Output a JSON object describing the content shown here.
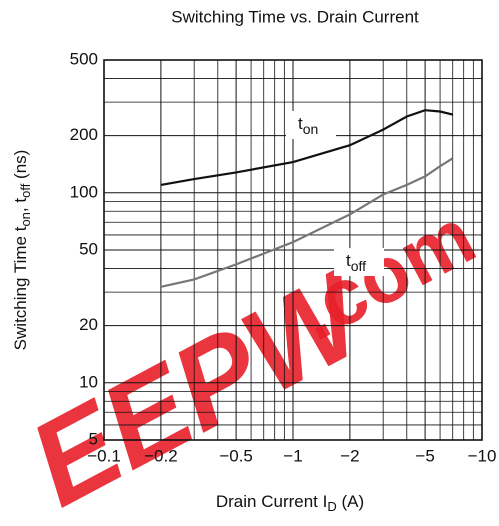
{
  "chart_data": {
    "type": "line",
    "title": "Switching Time vs. Drain Current",
    "xlabel": [
      {
        "text": "Drain Current   I"
      },
      {
        "sub": "D"
      },
      {
        "text": "   (A)"
      }
    ],
    "ylabel": [
      {
        "text": "Switching Time   t"
      },
      {
        "sub": "on"
      },
      {
        "text": ", t"
      },
      {
        "sub": "off"
      },
      {
        "text": "  (ns)"
      }
    ],
    "xscale": "log",
    "yscale": "log",
    "grid": true,
    "xlim": [
      -0.1,
      -10
    ],
    "ylim": [
      5,
      500
    ],
    "xticks": [
      {
        "value": -0.1,
        "label": "−0.1"
      },
      {
        "value": -0.2,
        "label": "−0.2"
      },
      {
        "value": -0.5,
        "label": "−0.5"
      },
      {
        "value": -1,
        "label": "−1"
      },
      {
        "value": -2,
        "label": "−2"
      },
      {
        "value": -5,
        "label": "−5"
      },
      {
        "value": -10,
        "label": "−10"
      }
    ],
    "yticks": [
      5,
      10,
      20,
      50,
      100,
      200,
      500
    ],
    "xminorticks": [
      -0.3,
      -0.4,
      -0.6,
      -0.7,
      -0.8,
      -0.9,
      -3,
      -4,
      -6,
      -7,
      -8,
      -9
    ],
    "yminorticks": [
      6,
      7,
      8,
      9,
      30,
      40,
      60,
      70,
      80,
      90,
      300,
      400
    ],
    "x": [
      -0.2,
      -0.3,
      -0.5,
      -1,
      -2,
      -3,
      -4,
      -5,
      -6,
      -7
    ],
    "series": [
      {
        "name": "t",
        "name_sub": "on",
        "color": "#111111",
        "values": [
          110,
          118,
          128,
          145,
          178,
          215,
          252,
          272,
          268,
          258
        ]
      },
      {
        "name": "t",
        "name_sub": "off",
        "color": "#777777",
        "values": [
          32,
          35,
          42,
          55,
          77,
          98,
          110,
          122,
          138,
          152
        ]
      }
    ],
    "watermark": [
      "EEPW",
      ".com"
    ]
  }
}
